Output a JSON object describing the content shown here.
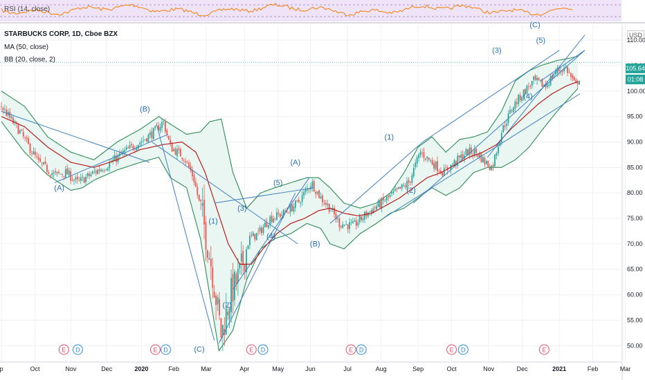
{
  "rsi_panel": {
    "label": "RSI (14, close)"
  },
  "legend": {
    "title": "STARBUCKS CORP, 1D, Cboe BZX",
    "ma": "MA (50, close)",
    "bb": "BB (20, close, 2)"
  },
  "currency": "USD",
  "last_price": "105.64",
  "countdown": "01:08",
  "colors": {
    "candle_up": "#26a69a",
    "candle_down": "#ef5350",
    "ma": "#b71c1c",
    "bb_band": "#2e8b57",
    "bb_fill": "#e8f5f0",
    "wave_line": "#3f7fbf",
    "wave_label": "#2a6fb0",
    "rsi_fill": "#efe3f7",
    "rsi_line": "#f57c00",
    "price_tag": "#26a69a"
  },
  "chart_data": {
    "type": "candlestick",
    "title": "STARBUCKS CORP, 1D, Cboe BZX",
    "ylabel": "USD",
    "ylim": [
      48,
      113
    ],
    "y_ticks": [
      "110.00",
      "105.00",
      "100.00",
      "95.00",
      "90.00",
      "85.00",
      "80.00",
      "75.00",
      "70.00",
      "65.00",
      "60.00",
      "55.00",
      "50.00"
    ],
    "x_ticks": [
      {
        "label": "p",
        "t": 0
      },
      {
        "label": "Oct",
        "t": 1.45
      },
      {
        "label": "Nov",
        "t": 3.0
      },
      {
        "label": "Dec",
        "t": 4.55
      },
      {
        "label": "2020",
        "t": 6.05
      },
      {
        "label": "Feb",
        "t": 7.45
      },
      {
        "label": "Mar",
        "t": 8.85
      },
      {
        "label": "Apr",
        "t": 10.5
      },
      {
        "label": "May",
        "t": 11.95
      },
      {
        "label": "Jun",
        "t": 13.35
      },
      {
        "label": "Jul",
        "t": 14.95
      },
      {
        "label": "Aug",
        "t": 16.4
      },
      {
        "label": "Sep",
        "t": 18.0
      },
      {
        "label": "Oct",
        "t": 19.45
      },
      {
        "label": "Nov",
        "t": 21.05
      },
      {
        "label": "Dec",
        "t": 22.5
      },
      {
        "label": "2021",
        "t": 24.1
      },
      {
        "label": "Feb",
        "t": 25.55
      },
      {
        "label": "Mar",
        "t": 26.95
      }
    ],
    "price_key": [
      [
        0,
        97
      ],
      [
        0.8,
        92
      ],
      [
        1.6,
        86
      ],
      [
        2.3,
        83.5
      ],
      [
        2.8,
        84
      ],
      [
        3.3,
        82
      ],
      [
        4.0,
        84
      ],
      [
        4.6,
        85.5
      ],
      [
        5.3,
        88
      ],
      [
        6.0,
        90
      ],
      [
        6.6,
        92
      ],
      [
        7.0,
        94
      ],
      [
        7.3,
        89
      ],
      [
        7.9,
        87
      ],
      [
        8.3,
        83
      ],
      [
        8.7,
        75
      ],
      [
        9.1,
        65
      ],
      [
        9.5,
        52
      ],
      [
        9.9,
        60
      ],
      [
        10.3,
        64
      ],
      [
        10.7,
        71
      ],
      [
        11.1,
        72
      ],
      [
        11.6,
        75
      ],
      [
        12.2,
        76
      ],
      [
        12.8,
        78
      ],
      [
        13.4,
        82
      ],
      [
        13.8,
        79
      ],
      [
        14.2,
        77
      ],
      [
        14.6,
        74
      ],
      [
        15.2,
        73.5
      ],
      [
        15.8,
        76
      ],
      [
        16.4,
        78
      ],
      [
        17.0,
        80
      ],
      [
        17.6,
        82
      ],
      [
        18.1,
        88
      ],
      [
        18.6,
        86
      ],
      [
        19.1,
        84
      ],
      [
        19.6,
        86
      ],
      [
        20.1,
        88
      ],
      [
        20.5,
        88
      ],
      [
        20.9,
        86
      ],
      [
        21.2,
        85
      ],
      [
        21.6,
        92
      ],
      [
        22.1,
        97
      ],
      [
        22.6,
        100
      ],
      [
        23.0,
        102
      ],
      [
        23.5,
        101
      ],
      [
        24.0,
        104
      ],
      [
        24.4,
        104.5
      ],
      [
        24.8,
        101
      ],
      [
        25.0,
        103
      ]
    ],
    "bb_upper_key": [
      [
        0,
        100
      ],
      [
        1.0,
        97
      ],
      [
        2.0,
        91
      ],
      [
        3.0,
        88
      ],
      [
        4.0,
        86.5
      ],
      [
        5.0,
        90
      ],
      [
        6.0,
        92.5
      ],
      [
        6.8,
        95
      ],
      [
        7.3,
        93.5
      ],
      [
        8.0,
        91.5
      ],
      [
        8.6,
        92
      ],
      [
        9.0,
        94
      ],
      [
        9.5,
        94.5
      ],
      [
        10.0,
        84
      ],
      [
        10.6,
        77
      ],
      [
        11.2,
        80
      ],
      [
        11.8,
        81
      ],
      [
        12.5,
        82
      ],
      [
        13.2,
        83
      ],
      [
        13.7,
        83
      ],
      [
        14.2,
        81
      ],
      [
        14.8,
        78
      ],
      [
        15.5,
        77
      ],
      [
        16.2,
        78
      ],
      [
        16.8,
        80
      ],
      [
        17.4,
        84
      ],
      [
        18.0,
        89
      ],
      [
        18.6,
        91
      ],
      [
        19.2,
        88
      ],
      [
        19.8,
        90.5
      ],
      [
        20.4,
        91
      ],
      [
        21.0,
        92
      ],
      [
        21.6,
        96
      ],
      [
        22.2,
        102
      ],
      [
        22.8,
        104
      ],
      [
        23.3,
        105
      ],
      [
        24.0,
        106
      ],
      [
        24.6,
        106.5
      ],
      [
        25.0,
        107
      ]
    ],
    "bb_lower_key": [
      [
        0,
        94
      ],
      [
        1.0,
        88
      ],
      [
        2.0,
        83.5
      ],
      [
        3.0,
        80.5
      ],
      [
        3.5,
        81
      ],
      [
        4.0,
        82.5
      ],
      [
        5.0,
        84.5
      ],
      [
        6.0,
        86
      ],
      [
        6.8,
        87
      ],
      [
        7.3,
        83
      ],
      [
        8.0,
        81
      ],
      [
        8.6,
        71
      ],
      [
        9.0,
        60
      ],
      [
        9.4,
        49
      ],
      [
        10.0,
        53
      ],
      [
        10.6,
        63
      ],
      [
        11.2,
        69
      ],
      [
        11.8,
        71
      ],
      [
        12.5,
        72
      ],
      [
        13.2,
        74
      ],
      [
        13.8,
        73
      ],
      [
        14.2,
        70
      ],
      [
        14.8,
        69
      ],
      [
        15.5,
        72
      ],
      [
        16.2,
        74
      ],
      [
        16.8,
        76
      ],
      [
        17.4,
        77
      ],
      [
        18.0,
        79
      ],
      [
        18.6,
        81
      ],
      [
        19.2,
        79.5
      ],
      [
        19.8,
        81
      ],
      [
        20.4,
        84
      ],
      [
        21.0,
        85
      ],
      [
        21.6,
        85
      ],
      [
        22.2,
        86.5
      ],
      [
        22.8,
        89
      ],
      [
        23.3,
        92
      ],
      [
        24.0,
        96
      ],
      [
        24.6,
        99
      ],
      [
        25.0,
        101
      ]
    ],
    "ma50_key": [
      [
        0,
        95
      ],
      [
        1.0,
        93
      ],
      [
        2.0,
        89
      ],
      [
        3.0,
        86
      ],
      [
        4.0,
        85
      ],
      [
        5.0,
        86.5
      ],
      [
        6.0,
        88.5
      ],
      [
        7.0,
        89.5
      ],
      [
        7.8,
        90
      ],
      [
        8.4,
        88
      ],
      [
        8.8,
        84
      ],
      [
        9.3,
        77
      ],
      [
        9.8,
        70
      ],
      [
        10.3,
        66
      ],
      [
        10.8,
        66
      ],
      [
        11.3,
        69
      ],
      [
        11.9,
        72
      ],
      [
        12.5,
        74
      ],
      [
        13.1,
        75
      ],
      [
        13.7,
        76.5
      ],
      [
        14.2,
        77
      ],
      [
        14.8,
        76
      ],
      [
        15.4,
        75.5
      ],
      [
        16.0,
        76
      ],
      [
        16.6,
        77.5
      ],
      [
        17.2,
        79
      ],
      [
        17.8,
        81
      ],
      [
        18.4,
        83
      ],
      [
        19.0,
        84
      ],
      [
        19.6,
        85.5
      ],
      [
        20.2,
        87
      ],
      [
        20.8,
        88
      ],
      [
        21.4,
        89.5
      ],
      [
        22.0,
        92.5
      ],
      [
        22.6,
        95
      ],
      [
        23.2,
        97.5
      ],
      [
        23.8,
        99.5
      ],
      [
        24.4,
        101
      ],
      [
        25.0,
        102
      ]
    ],
    "trendlines": [
      {
        "from": [
          6.7,
          93.5
        ],
        "to": [
          9.2,
          51
        ]
      },
      {
        "from": [
          9.4,
          50.5
        ],
        "to": [
          12.7,
          80
        ]
      },
      {
        "from": [
          9.2,
          78
        ],
        "to": [
          13.5,
          81
        ]
      },
      {
        "from": [
          2.3,
          82
        ],
        "to": [
          7.2,
          91.5
        ]
      },
      {
        "from": [
          10.0,
          61
        ],
        "to": [
          13.3,
          83
        ]
      },
      {
        "from": [
          14.2,
          74
        ],
        "to": [
          18.2,
          90
        ]
      },
      {
        "from": [
          17.8,
          78
        ],
        "to": [
          25.2,
          108
        ]
      },
      {
        "from": [
          18.2,
          90
        ],
        "to": [
          24.1,
          108
        ]
      },
      {
        "from": [
          21.0,
          87
        ],
        "to": [
          25.2,
          111
        ]
      },
      {
        "from": [
          23.3,
          102
        ],
        "to": [
          25.2,
          108
        ]
      },
      {
        "from": [
          0,
          96
        ],
        "to": [
          6.4,
          86
        ]
      },
      {
        "from": [
          6.5,
          90
        ],
        "to": [
          12.8,
          70
        ]
      },
      {
        "from": [
          16.5,
          75
        ],
        "to": [
          25.0,
          99.5
        ]
      }
    ],
    "wave_labels": [
      {
        "label": "(A)",
        "t": 2.5,
        "v": 80.5
      },
      {
        "label": "(B)",
        "t": 6.2,
        "v": 96
      },
      {
        "label": "(C)",
        "t": 8.55,
        "v": 48.8
      },
      {
        "label": "(1)",
        "t": 9.15,
        "v": 74
      },
      {
        "label": "(2)",
        "t": 9.75,
        "v": 57.5
      },
      {
        "label": "(3)",
        "t": 10.4,
        "v": 76.5
      },
      {
        "label": "(4)",
        "t": 11.65,
        "v": 71
      },
      {
        "label": "(5)",
        "t": 11.95,
        "v": 81.5
      },
      {
        "label": "(A)",
        "t": 12.7,
        "v": 85.5
      },
      {
        "label": "(B)",
        "t": 13.55,
        "v": 69.5
      },
      {
        "label": "(1)",
        "t": 16.75,
        "v": 90.5
      },
      {
        "label": "(2)",
        "t": 17.7,
        "v": 80
      },
      {
        "label": "(3)",
        "t": 21.4,
        "v": 107.5
      },
      {
        "label": "(4)",
        "t": 22.75,
        "v": 98.5
      },
      {
        "label": "(C)",
        "t": 23.05,
        "v": 112.5
      },
      {
        "label": "(5)",
        "t": 23.3,
        "v": 109.5
      }
    ],
    "events": [
      {
        "type": "E",
        "t": 2.7
      },
      {
        "type": "D",
        "t": 3.3
      },
      {
        "type": "E",
        "t": 6.65
      },
      {
        "type": "D",
        "t": 7.1
      },
      {
        "type": "E",
        "t": 10.8
      },
      {
        "type": "D",
        "t": 11.3
      },
      {
        "type": "E",
        "t": 15.1
      },
      {
        "type": "D",
        "t": 15.55
      },
      {
        "type": "E",
        "t": 19.45
      },
      {
        "type": "D",
        "t": 19.95
      },
      {
        "type": "E",
        "t": 23.45
      }
    ]
  }
}
